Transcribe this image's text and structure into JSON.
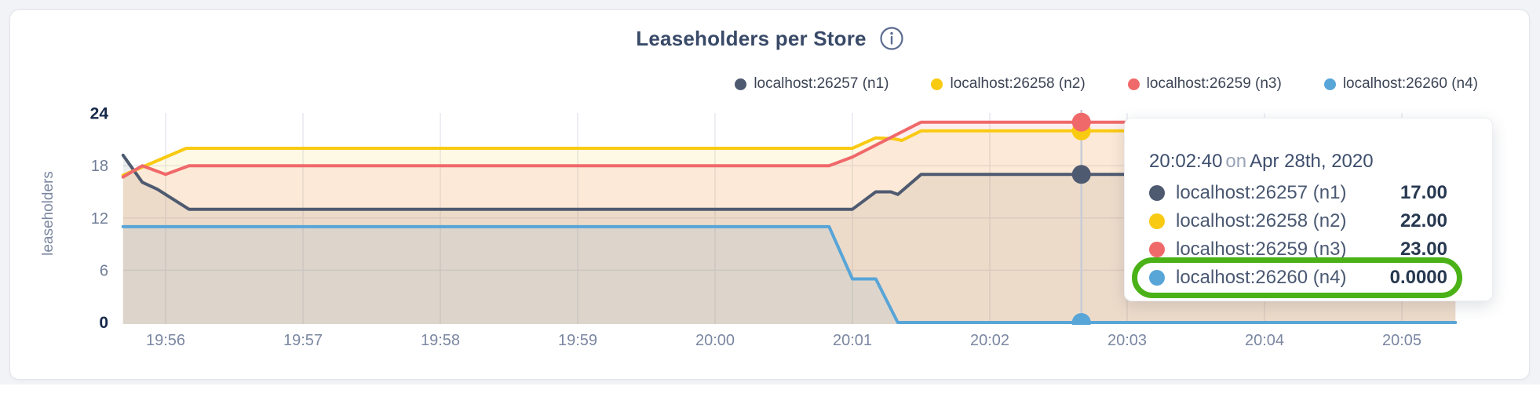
{
  "header": {
    "title": "Leaseholders per Store"
  },
  "tooltip": {
    "time": "20:02:40",
    "on_word": "on",
    "date": "Apr 28th, 2020",
    "rows": [
      {
        "name": "localhost:26257 (n1)",
        "value": "17.00",
        "color": "#4e5a70"
      },
      {
        "name": "localhost:26258 (n2)",
        "value": "22.00",
        "color": "#f9ca12"
      },
      {
        "name": "localhost:26259 (n3)",
        "value": "23.00",
        "color": "#f0696a"
      },
      {
        "name": "localhost:26260 (n4)",
        "value": "0.0000",
        "color": "#58a5d8"
      }
    ],
    "highlight_row_index": 3,
    "highlight_color": "#4ab216"
  },
  "chart_data": {
    "type": "area",
    "title": "Leaseholders per Store",
    "ylabel": "leaseholders",
    "xlabel": "",
    "ylim": [
      0,
      24
    ],
    "yticks": [
      0,
      6,
      12,
      18,
      24
    ],
    "yticks_strong": [
      0,
      24
    ],
    "xticks": [
      "19:56",
      "19:57",
      "19:58",
      "19:59",
      "20:00",
      "20:01",
      "20:02",
      "20:03",
      "20:04",
      "20:05"
    ],
    "x_unit": "minutes after 19:56",
    "x_range": [
      -0.31,
      9.39
    ],
    "grid": true,
    "legend_position": "top-right",
    "series": [
      {
        "name": "localhost:26257 (n1)",
        "color": "#4e5a70",
        "points": [
          [
            -0.31,
            19.2
          ],
          [
            -0.17,
            16.1
          ],
          [
            -0.06,
            15.3
          ],
          [
            0.17,
            13
          ],
          [
            5.0,
            13
          ],
          [
            5.17,
            15
          ],
          [
            5.28,
            15
          ],
          [
            5.33,
            14.7
          ],
          [
            5.5,
            17
          ],
          [
            9.39,
            17
          ]
        ]
      },
      {
        "name": "localhost:26258 (n2)",
        "color": "#f9ca12",
        "points": [
          [
            -0.31,
            16.9
          ],
          [
            0.15,
            20
          ],
          [
            5.0,
            20
          ],
          [
            5.17,
            21.2
          ],
          [
            5.3,
            21.1
          ],
          [
            5.36,
            20.9
          ],
          [
            5.5,
            22
          ],
          [
            9.39,
            22
          ]
        ]
      },
      {
        "name": "localhost:26259 (n3)",
        "color": "#f0696a",
        "points": [
          [
            -0.31,
            16.7
          ],
          [
            -0.17,
            18
          ],
          [
            0.0,
            17
          ],
          [
            0.17,
            18
          ],
          [
            4.83,
            18
          ],
          [
            5.0,
            19
          ],
          [
            5.5,
            23
          ],
          [
            9.39,
            23
          ]
        ]
      },
      {
        "name": "localhost:26260 (n4)",
        "color": "#58a5d8",
        "points": [
          [
            -0.31,
            11
          ],
          [
            4.83,
            11
          ],
          [
            5.0,
            5
          ],
          [
            5.17,
            5
          ],
          [
            5.33,
            0
          ],
          [
            9.39,
            0
          ]
        ]
      }
    ],
    "hover": {
      "time_label": "20:02:40",
      "t": 6.667,
      "values": [
        17,
        22,
        23,
        0
      ]
    }
  }
}
